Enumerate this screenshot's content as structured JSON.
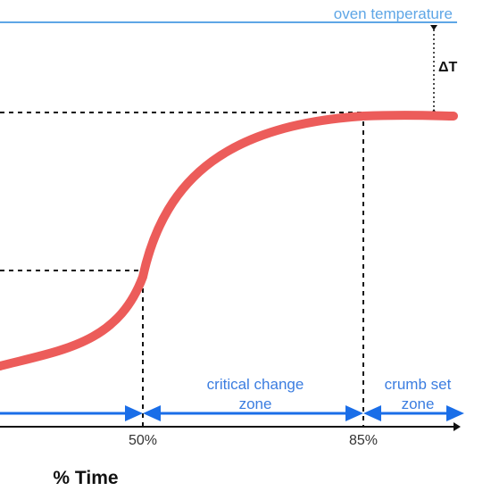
{
  "oven_label": "oven temperature",
  "delta_label": "ΔT",
  "zones": {
    "critical_line1": "critical change",
    "critical_line2": "zone",
    "crumb_line1": "crumb set",
    "crumb_line2": "zone"
  },
  "ticks": {
    "t50": "50%",
    "t85": "85%"
  },
  "x_axis_title": "% Time",
  "colors": {
    "curve": "#ec5c5a",
    "oven_line": "#5ea6e6",
    "zone_arrows": "#1a6ee8",
    "axis": "#111111"
  }
}
